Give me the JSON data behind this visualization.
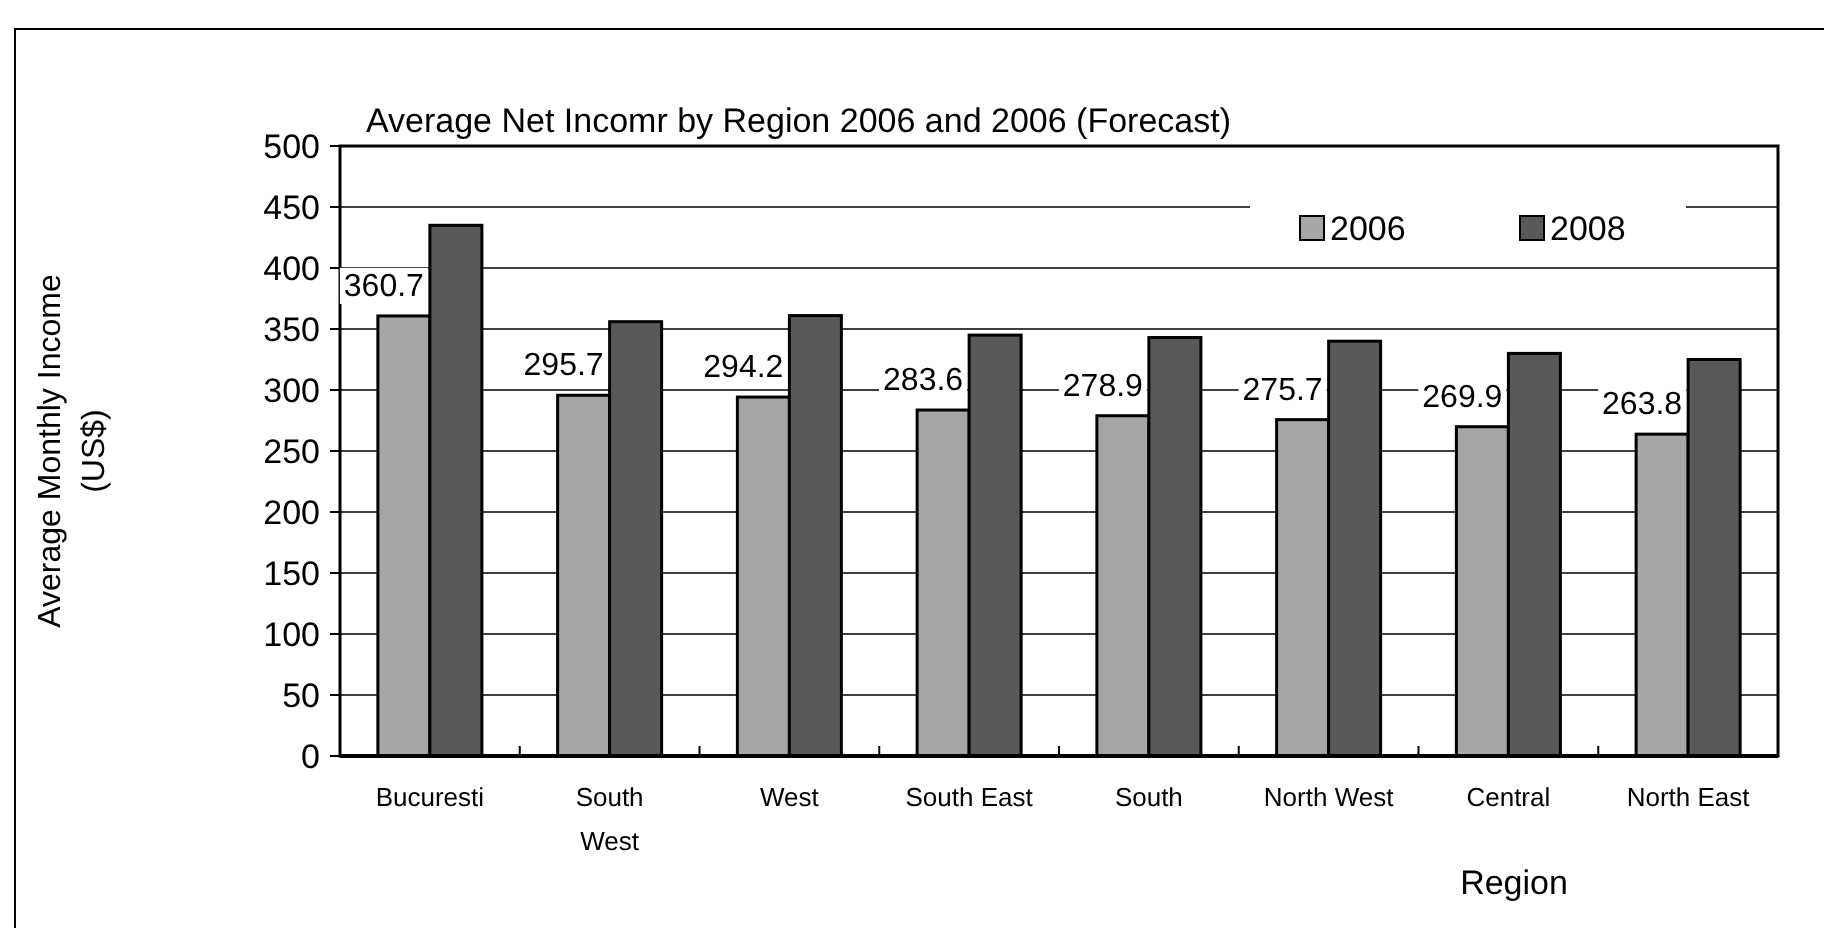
{
  "chart_data": {
    "type": "bar",
    "title": "Average Net Incomr by Region 2006 and 2006 (Forecast)",
    "xlabel": "Region",
    "ylabel": "Average Monthly Income\n(US$)",
    "categories": [
      "Bucuresti",
      "South\nWest",
      "West",
      "South East",
      "South",
      "North West",
      "Central",
      "North East"
    ],
    "series": [
      {
        "name": "2006",
        "color": "#a6a6a6",
        "values": [
          360.7,
          295.7,
          294.2,
          283.6,
          278.9,
          275.7,
          269.9,
          263.8
        ],
        "value_labels": [
          "360.7",
          "295.7",
          "294.2",
          "283.6",
          "278.9",
          "275.7",
          "269.9",
          "263.8"
        ]
      },
      {
        "name": "2008",
        "color": "#595959",
        "values": [
          435,
          356,
          361,
          345,
          343,
          340,
          330,
          325
        ]
      }
    ],
    "ylim": [
      0,
      500
    ],
    "yticks": [
      0,
      50,
      100,
      150,
      200,
      250,
      300,
      350,
      400,
      450,
      500
    ],
    "grid": "y",
    "legend": "top right"
  }
}
